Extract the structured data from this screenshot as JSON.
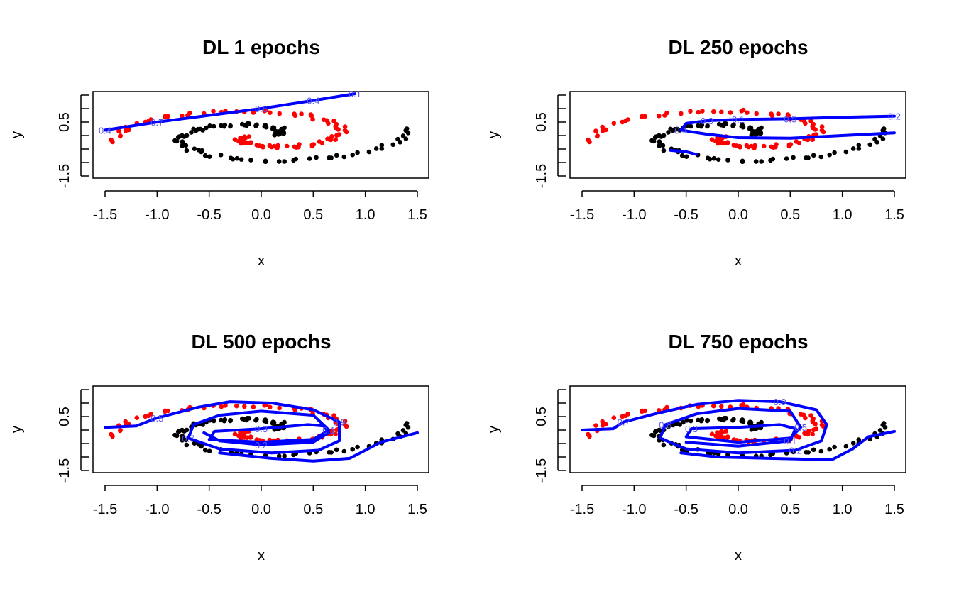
{
  "chart_data": [
    {
      "type": "scatter",
      "title": "DL 1 epochs",
      "xlabel": "x",
      "ylabel": "y",
      "xlim": [
        -1.5,
        1.5
      ],
      "ylim": [
        -1.5,
        1.5
      ],
      "xticks": [
        "-1.5",
        "-1.0",
        "-0.5",
        "0.0",
        "0.5",
        "1.0",
        "1.5"
      ],
      "yticks": [
        "-1.5",
        "0.5"
      ],
      "series": [
        {
          "color": "#000000"
        },
        {
          "color": "#ff0000"
        }
      ],
      "contour": {
        "color": "#0000ff",
        "levels": [
          "0.4",
          "0.7",
          "0.6",
          "0.4",
          "0.1"
        ],
        "paths": [
          [
            [
              -1.5,
              0.2
            ],
            [
              -1.0,
              0.5
            ],
            [
              -0.5,
              0.75
            ],
            [
              0.0,
              1.0
            ],
            [
              0.5,
              1.3
            ],
            [
              0.9,
              1.55
            ]
          ]
        ]
      }
    },
    {
      "type": "scatter",
      "title": "DL 250 epochs",
      "xlabel": "x",
      "ylabel": "y",
      "xlim": [
        -1.5,
        1.5
      ],
      "ylim": [
        -1.5,
        1.5
      ],
      "xticks": [
        "-1.5",
        "-1.0",
        "-0.5",
        "0.0",
        "0.5",
        "1.0",
        "1.5"
      ],
      "yticks": [
        "-1.5",
        "0.5"
      ],
      "series": [
        {
          "color": "#000000"
        },
        {
          "color": "#ff0000"
        }
      ],
      "contour": {
        "color": "#0000ff",
        "levels": [
          "0.4",
          "0.3",
          "0.1",
          "0.5",
          "0.2"
        ],
        "paths": [
          [
            [
              -0.55,
              0.2
            ],
            [
              -0.5,
              0.45
            ],
            [
              -0.3,
              0.55
            ],
            [
              0.0,
              0.6
            ],
            [
              0.5,
              0.62
            ],
            [
              1.0,
              0.68
            ],
            [
              1.5,
              0.72
            ]
          ],
          [
            [
              -0.55,
              0.2
            ],
            [
              -0.3,
              0.05
            ],
            [
              0.0,
              -0.08
            ],
            [
              0.5,
              -0.1
            ],
            [
              1.0,
              0.0
            ],
            [
              1.5,
              0.1
            ]
          ],
          [
            [
              -0.65,
              -0.55
            ],
            [
              -0.5,
              -0.6
            ],
            [
              -0.4,
              -0.7
            ]
          ]
        ]
      }
    },
    {
      "type": "scatter",
      "title": "DL 500 epochs",
      "xlabel": "x",
      "ylabel": "y",
      "xlim": [
        -1.5,
        1.5
      ],
      "ylim": [
        -1.5,
        1.5
      ],
      "xticks": [
        "-1.5",
        "-1.0",
        "-0.5",
        "0.0",
        "0.5",
        "1.0",
        "1.5"
      ],
      "yticks": [
        "-1.5",
        "0.5"
      ],
      "series": [
        {
          "color": "#000000"
        },
        {
          "color": "#ff0000"
        }
      ],
      "contour": {
        "color": "#0000ff",
        "levels": [
          "0.5",
          "0.9",
          "0.7",
          "0.1",
          "0.3",
          "0.2"
        ],
        "paths": [
          [
            [
              -1.5,
              0.1
            ],
            [
              -1.2,
              0.15
            ],
            [
              -1.0,
              0.45
            ],
            [
              -0.6,
              0.85
            ],
            [
              -0.3,
              1.05
            ],
            [
              0.1,
              1.0
            ],
            [
              0.5,
              0.75
            ],
            [
              0.75,
              0.3
            ],
            [
              0.75,
              -0.4
            ],
            [
              0.55,
              -0.75
            ],
            [
              0.1,
              -0.85
            ],
            [
              -0.4,
              -0.7
            ],
            [
              -0.7,
              -0.3
            ],
            [
              -0.65,
              0.2
            ],
            [
              -0.4,
              0.55
            ],
            [
              0.0,
              0.7
            ],
            [
              0.5,
              0.55
            ],
            [
              0.65,
              0.0
            ],
            [
              0.5,
              -0.35
            ],
            [
              0.0,
              -0.45
            ],
            [
              -0.5,
              -0.35
            ],
            [
              -0.45,
              -0.05
            ],
            [
              0.0,
              0.05
            ],
            [
              0.45,
              0.2
            ],
            [
              0.6,
              0.15
            ],
            [
              0.65,
              -0.1
            ],
            [
              0.5,
              -0.45
            ],
            [
              0.0,
              -0.55
            ],
            [
              -0.4,
              -0.4
            ],
            [
              -0.55,
              -0.1
            ]
          ],
          [
            [
              -0.4,
              -0.85
            ],
            [
              0.1,
              -1.05
            ],
            [
              0.5,
              -1.15
            ],
            [
              0.85,
              -1.05
            ],
            [
              1.15,
              -0.45
            ],
            [
              1.5,
              -0.1
            ]
          ]
        ]
      }
    },
    {
      "type": "scatter",
      "title": "DL 750 epochs",
      "xlabel": "x",
      "ylabel": "y",
      "xlim": [
        -1.5,
        1.5
      ],
      "ylim": [
        -1.5,
        1.5
      ],
      "xticks": [
        "-1.5",
        "-1.0",
        "-0.5",
        "0.0",
        "0.5",
        "1.0",
        "1.5"
      ],
      "yticks": [
        "-1.5",
        "0.5"
      ],
      "series": [
        {
          "color": "#000000"
        },
        {
          "color": "#ff0000"
        }
      ],
      "contour": {
        "color": "#0000ff",
        "levels": [
          "0.7",
          "0.9",
          "0.2",
          "0.8",
          "0.5",
          "0.3",
          "0.1"
        ],
        "paths": [
          [
            [
              -1.5,
              0.0
            ],
            [
              -1.2,
              0.05
            ],
            [
              -1.1,
              0.3
            ],
            [
              -0.8,
              0.6
            ],
            [
              -0.4,
              0.95
            ],
            [
              0.0,
              1.1
            ],
            [
              0.4,
              1.05
            ],
            [
              0.75,
              0.75
            ],
            [
              0.85,
              0.2
            ],
            [
              0.8,
              -0.4
            ],
            [
              0.55,
              -0.75
            ],
            [
              0.0,
              -0.85
            ],
            [
              -0.5,
              -0.7
            ],
            [
              -0.75,
              -0.3
            ],
            [
              -0.7,
              0.2
            ],
            [
              -0.4,
              0.6
            ],
            [
              0.0,
              0.8
            ],
            [
              0.5,
              0.7
            ],
            [
              0.6,
              0.1
            ],
            [
              0.5,
              -0.3
            ],
            [
              0.0,
              -0.45
            ],
            [
              -0.5,
              -0.25
            ],
            [
              -0.45,
              0.05
            ],
            [
              0.0,
              0.1
            ],
            [
              0.4,
              0.2
            ],
            [
              0.55,
              0.05
            ],
            [
              0.5,
              -0.4
            ],
            [
              0.0,
              -0.6
            ],
            [
              -0.5,
              -0.45
            ]
          ],
          [
            [
              -0.55,
              -0.85
            ],
            [
              -0.2,
              -1.0
            ],
            [
              0.3,
              -1.05
            ],
            [
              0.9,
              -1.1
            ],
            [
              1.1,
              -0.7
            ],
            [
              1.25,
              -0.25
            ],
            [
              1.5,
              -0.05
            ]
          ]
        ]
      }
    }
  ]
}
